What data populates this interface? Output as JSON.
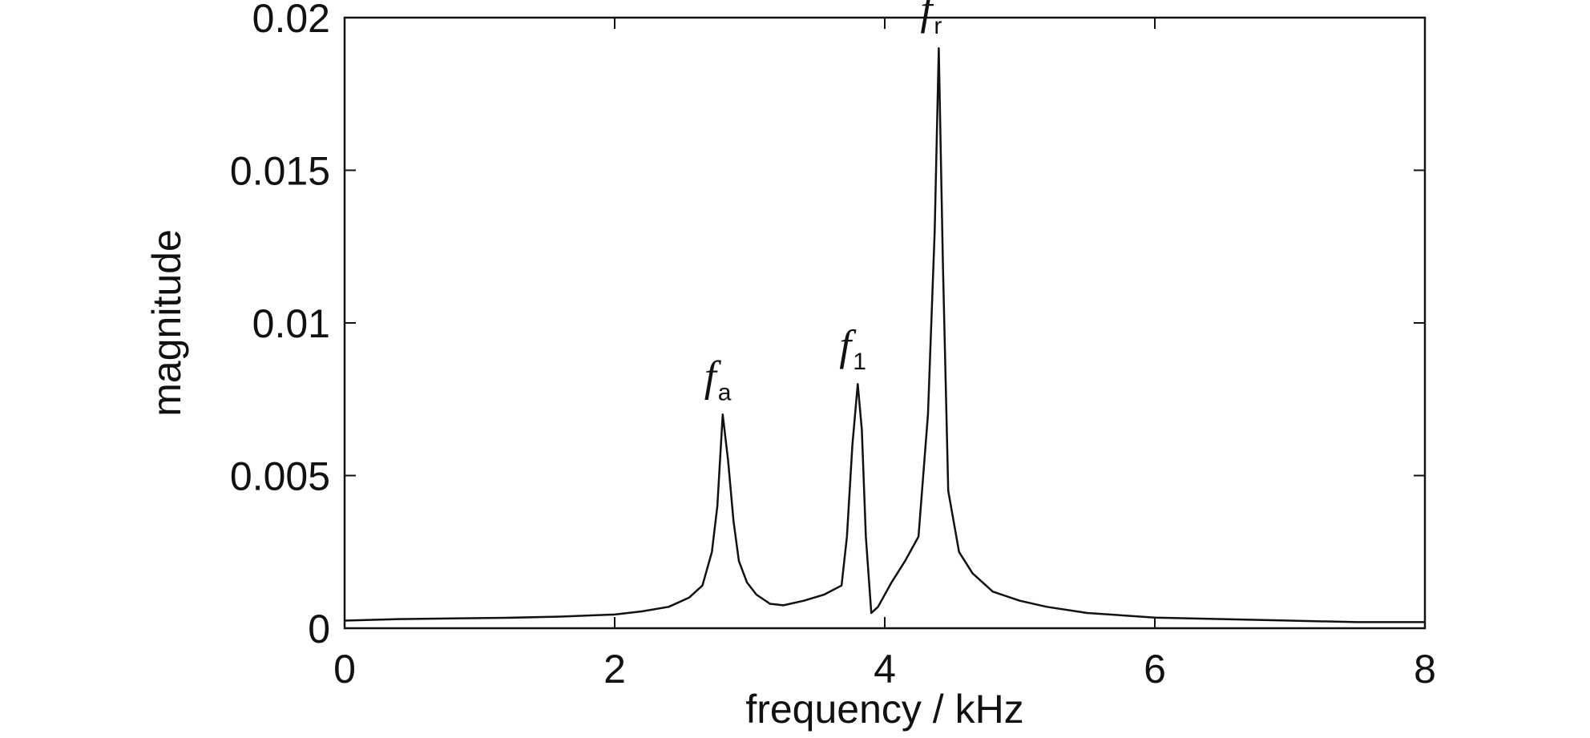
{
  "chart_data": {
    "type": "line",
    "title": "",
    "xlabel": "frequency / kHz",
    "ylabel": "magnitude",
    "xlim": [
      0,
      8
    ],
    "ylim": [
      0,
      0.02
    ],
    "xticks": [
      0,
      2,
      4,
      6,
      8
    ],
    "xtick_labels": [
      "0",
      "2",
      "4",
      "6",
      "8"
    ],
    "yticks": [
      0,
      0.005,
      0.01,
      0.015,
      0.02
    ],
    "ytick_labels": [
      "0",
      "0.005",
      "0.01",
      "0.015",
      "0.02"
    ],
    "grid": false,
    "line_color": "#111111",
    "series": [
      {
        "x": [
          0,
          0.4,
          0.8,
          1.2,
          1.6,
          2.0,
          2.2,
          2.4,
          2.55,
          2.65,
          2.72,
          2.76,
          2.8,
          2.84,
          2.88,
          2.92,
          2.98,
          3.05,
          3.15,
          3.25,
          3.4,
          3.55,
          3.68,
          3.72,
          3.76,
          3.8,
          3.83,
          3.86,
          3.9,
          3.95,
          4.05,
          4.15,
          4.25,
          4.32,
          4.37,
          4.4,
          4.43,
          4.47,
          4.55,
          4.65,
          4.8,
          5.0,
          5.2,
          5.5,
          6.0,
          6.5,
          7.0,
          7.5,
          8.0
        ],
        "y": [
          0.00025,
          0.0003,
          0.00032,
          0.00034,
          0.00038,
          0.00045,
          0.00055,
          0.0007,
          0.001,
          0.0014,
          0.0025,
          0.004,
          0.007,
          0.0055,
          0.0035,
          0.0022,
          0.0015,
          0.0011,
          0.0008,
          0.00075,
          0.0009,
          0.0011,
          0.0014,
          0.003,
          0.006,
          0.008,
          0.0065,
          0.003,
          0.0005,
          0.0007,
          0.0015,
          0.0022,
          0.003,
          0.007,
          0.013,
          0.019,
          0.012,
          0.0045,
          0.0025,
          0.0018,
          0.0012,
          0.0009,
          0.0007,
          0.0005,
          0.00035,
          0.0003,
          0.00025,
          0.0002,
          0.0002
        ]
      }
    ],
    "annotations": [
      {
        "name": "f",
        "sub": "a",
        "x": 2.8,
        "y": 0.007
      },
      {
        "name": "f",
        "sub": "1",
        "x": 3.8,
        "y": 0.008
      },
      {
        "name": "f",
        "sub": "r",
        "x": 4.4,
        "y": 0.019
      }
    ]
  }
}
